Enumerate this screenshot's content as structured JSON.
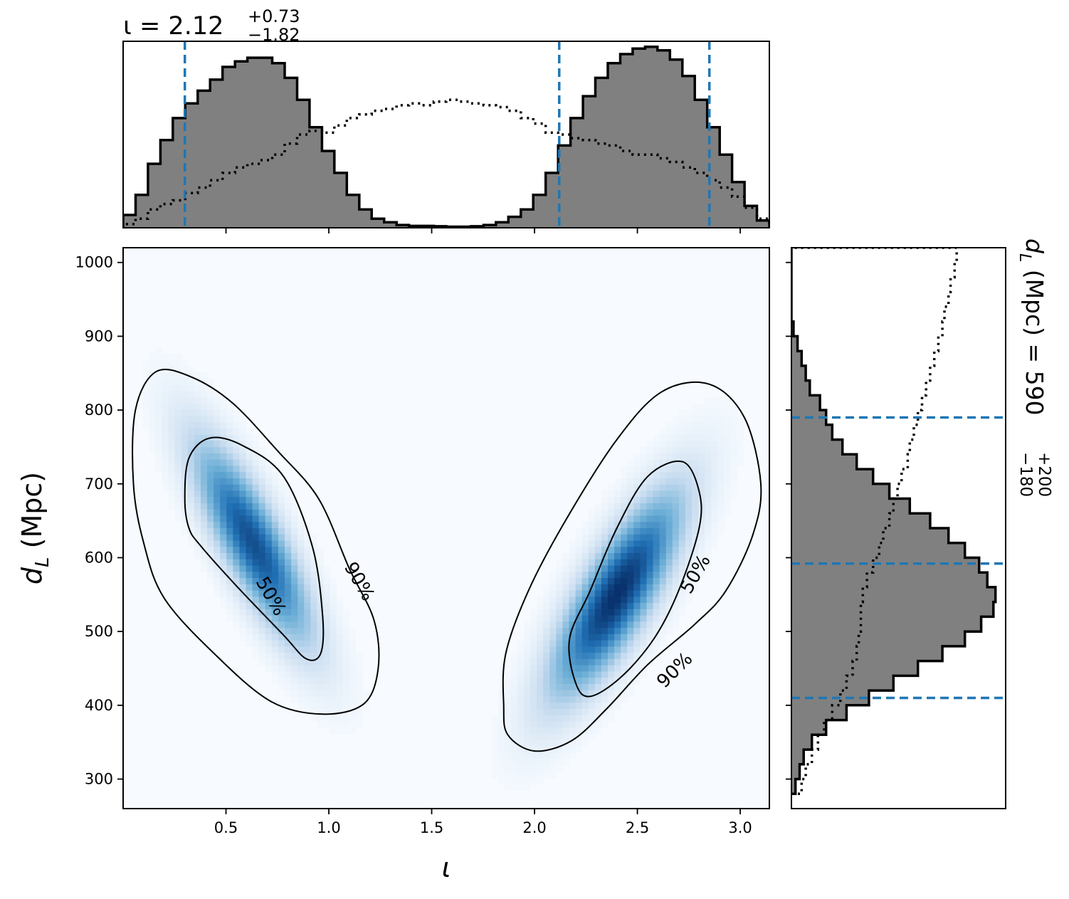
{
  "chart_data": {
    "type": "heatmap",
    "joint": {
      "xlabel": "ι",
      "ylabel": "d_L (Mpc)",
      "xlim": [
        0.0,
        3.1416
      ],
      "ylim": [
        260,
        1020
      ],
      "xticks": [
        "0.5",
        "1.0",
        "1.5",
        "2.0",
        "2.5",
        "3.0"
      ],
      "xtick_values": [
        0.5,
        1.0,
        1.5,
        2.0,
        2.5,
        3.0
      ],
      "yticks": [
        "300",
        "400",
        "500",
        "600",
        "700",
        "800",
        "900",
        "1000"
      ],
      "ytick_values": [
        300,
        400,
        500,
        600,
        700,
        800,
        900,
        1000
      ],
      "colormap": [
        "#f7fbff",
        "#c6dbef",
        "#6baed6",
        "#2171b5",
        "#08306b"
      ],
      "modes": [
        {
          "center_x": 0.63,
          "center_y": 620,
          "peak": 0.88
        },
        {
          "center_x": 2.4,
          "center_y": 550,
          "peak": 1.0
        }
      ],
      "contours": [
        {
          "label": "50%",
          "points": [
            [
              0.3,
              680
            ],
            [
              0.32,
              735
            ],
            [
              0.42,
              762
            ],
            [
              0.58,
              752
            ],
            [
              0.78,
              710
            ],
            [
              0.92,
              615
            ],
            [
              0.97,
              520
            ],
            [
              0.96,
              470
            ],
            [
              0.89,
              463
            ],
            [
              0.78,
              495
            ],
            [
              0.55,
              562
            ],
            [
              0.38,
              615
            ],
            [
              0.32,
              640
            ]
          ]
        },
        {
          "label": "90%",
          "points": [
            [
              0.1,
              620
            ],
            [
              0.05,
              700
            ],
            [
              0.06,
              800
            ],
            [
              0.16,
              852
            ],
            [
              0.33,
              845
            ],
            [
              0.53,
              810
            ],
            [
              0.75,
              745
            ],
            [
              0.95,
              680
            ],
            [
              1.1,
              585
            ],
            [
              1.22,
              515
            ],
            [
              1.24,
              450
            ],
            [
              1.17,
              402
            ],
            [
              0.97,
              388
            ],
            [
              0.72,
              405
            ],
            [
              0.45,
              468
            ],
            [
              0.2,
              545
            ]
          ]
        },
        {
          "label": "50%",
          "points": [
            [
              2.2,
              430
            ],
            [
              2.17,
              490
            ],
            [
              2.27,
              555
            ],
            [
              2.4,
              640
            ],
            [
              2.55,
              710
            ],
            [
              2.72,
              730
            ],
            [
              2.8,
              690
            ],
            [
              2.8,
              640
            ],
            [
              2.7,
              555
            ],
            [
              2.58,
              490
            ],
            [
              2.42,
              438
            ],
            [
              2.27,
              412
            ]
          ]
        },
        {
          "label": "90%",
          "points": [
            [
              1.85,
              400
            ],
            [
              1.86,
              470
            ],
            [
              1.97,
              555
            ],
            [
              2.15,
              650
            ],
            [
              2.4,
              760
            ],
            [
              2.62,
              825
            ],
            [
              2.85,
              835
            ],
            [
              3.02,
              790
            ],
            [
              3.1,
              700
            ],
            [
              3.06,
              630
            ],
            [
              2.93,
              555
            ],
            [
              2.78,
              510
            ],
            [
              2.55,
              455
            ],
            [
              2.35,
              395
            ],
            [
              2.18,
              352
            ],
            [
              2.0,
              338
            ],
            [
              1.87,
              360
            ]
          ]
        }
      ],
      "contour_labels": [
        {
          "text": "50%",
          "x": 0.72,
          "y": 548,
          "angle": 60
        },
        {
          "text": "90%",
          "x": 1.15,
          "y": 568,
          "angle": 60
        },
        {
          "text": "50%",
          "x": 2.78,
          "y": 578,
          "angle": -60
        },
        {
          "text": "90%",
          "x": 2.68,
          "y": 448,
          "angle": -45
        }
      ]
    },
    "top_histogram": {
      "title_base": "ι = 2.12",
      "title_sup": "+0.73",
      "title_sub": "−1.82",
      "median": 2.12,
      "lower": 0.3,
      "upper": 2.85,
      "posterior_density": [
        0.07,
        0.18,
        0.35,
        0.48,
        0.6,
        0.68,
        0.75,
        0.81,
        0.88,
        0.91,
        0.93,
        0.93,
        0.9,
        0.82,
        0.7,
        0.55,
        0.42,
        0.3,
        0.18,
        0.1,
        0.05,
        0.03,
        0.015,
        0.01,
        0.01,
        0.008,
        0.006,
        0.006,
        0.008,
        0.015,
        0.03,
        0.06,
        0.1,
        0.18,
        0.3,
        0.45,
        0.6,
        0.72,
        0.82,
        0.9,
        0.95,
        0.98,
        0.99,
        0.97,
        0.92,
        0.83,
        0.7,
        0.55,
        0.4,
        0.25,
        0.12,
        0.04
      ],
      "prior_density": [
        0.02,
        0.05,
        0.1,
        0.13,
        0.15,
        0.19,
        0.22,
        0.26,
        0.3,
        0.33,
        0.35,
        0.37,
        0.4,
        0.46,
        0.51,
        0.53,
        0.52,
        0.56,
        0.6,
        0.62,
        0.64,
        0.65,
        0.67,
        0.68,
        0.67,
        0.69,
        0.7,
        0.69,
        0.68,
        0.67,
        0.66,
        0.64,
        0.6,
        0.57,
        0.52,
        0.51,
        0.49,
        0.48,
        0.46,
        0.45,
        0.42,
        0.4,
        0.4,
        0.38,
        0.36,
        0.33,
        0.3,
        0.26,
        0.22,
        0.17,
        0.11,
        0.05
      ]
    },
    "right_histogram": {
      "label_base": "d_L (Mpc) = 590",
      "label_sup": "+200",
      "label_sub": "−180",
      "median": 592,
      "lower": 410,
      "upper": 790,
      "bin_start": 280,
      "bin_width": 20,
      "posterior_density": [
        0.02,
        0.04,
        0.06,
        0.1,
        0.17,
        0.27,
        0.38,
        0.5,
        0.62,
        0.74,
        0.85,
        0.93,
        0.99,
        1.0,
        0.96,
        0.92,
        0.85,
        0.77,
        0.68,
        0.58,
        0.48,
        0.4,
        0.32,
        0.25,
        0.2,
        0.17,
        0.14,
        0.09,
        0.07,
        0.05,
        0.03,
        0.01,
        0.0,
        0.0,
        0.0,
        0.0,
        0.0
      ],
      "prior_density": [
        0.05,
        0.07,
        0.1,
        0.13,
        0.16,
        0.2,
        0.24,
        0.27,
        0.3,
        0.32,
        0.33,
        0.34,
        0.34,
        0.35,
        0.37,
        0.4,
        0.43,
        0.45,
        0.48,
        0.5,
        0.52,
        0.54,
        0.57,
        0.58,
        0.6,
        0.62,
        0.64,
        0.66,
        0.68,
        0.7,
        0.72,
        0.74,
        0.75,
        0.77,
        0.78,
        0.8,
        0.81
      ]
    },
    "colors": {
      "hist_fill": "#808080",
      "hist_edge": "#000000",
      "interval_line": "#1f77b4"
    }
  }
}
